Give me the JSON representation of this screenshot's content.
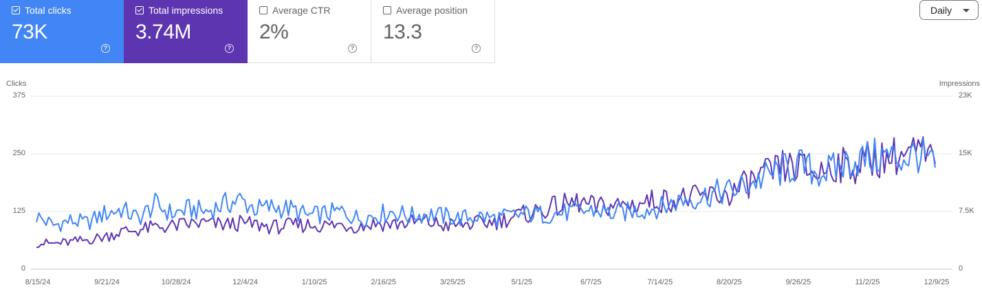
{
  "cards": [
    {
      "label": "Total clicks",
      "value": "73K",
      "checked": true,
      "color": "#4285f4"
    },
    {
      "label": "Total impressions",
      "value": "3.74M",
      "checked": true,
      "color": "#5e35b1"
    },
    {
      "label": "Average CTR",
      "value": "2%",
      "checked": false,
      "color": "#ffffff"
    },
    {
      "label": "Average position",
      "value": "13.3",
      "checked": false,
      "color": "#ffffff"
    }
  ],
  "period_select": {
    "label": "Daily"
  },
  "icons": {
    "help": "help-circle-icon",
    "dropdown": "caret-down-icon",
    "checkbox": "checkbox-icon"
  },
  "chart_data": {
    "type": "line",
    "x": [
      "8/15/24",
      "8/23/24",
      "9/1/24",
      "9/10/24",
      "9/21/24",
      "10/1/24",
      "10/10/24",
      "10/20/24",
      "10/28/24",
      "11/5/24",
      "11/15/24",
      "11/25/24",
      "12/4/24",
      "12/12/24",
      "12/22/24",
      "1/1/25",
      "1/10/25",
      "1/18/25",
      "1/28/25",
      "2/7/25",
      "2/16/25",
      "2/24/25",
      "3/3/25",
      "3/14/25",
      "3/25/25",
      "4/3/25",
      "4/13/25",
      "4/22/25",
      "5/1/25",
      "5/10/25",
      "5/20/25",
      "5/29/25",
      "6/7/25",
      "6/15/25",
      "6/25/25",
      "7/5/25",
      "7/14/25",
      "7/22/25",
      "8/1/25",
      "8/10/25",
      "8/20/25",
      "8/28/25",
      "9/7/25",
      "9/16/25",
      "9/26/25",
      "10/5/25",
      "10/14/25",
      "10/24/25",
      "11/2/25",
      "11/11/25",
      "11/20/25",
      "11/30/25",
      "12/9/25",
      "12/14/25"
    ],
    "series": [
      {
        "name": "Clicks",
        "axis": "left",
        "color": "#4285f4",
        "values": [
          115,
          95,
          105,
          100,
          120,
          130,
          110,
          140,
          120,
          130,
          125,
          140,
          150,
          130,
          135,
          130,
          115,
          120,
          125,
          110,
          118,
          125,
          115,
          120,
          115,
          110,
          115,
          110,
          115,
          120,
          118,
          122,
          125,
          128,
          120,
          125,
          130,
          135,
          150,
          155,
          165,
          170,
          185,
          200,
          215,
          225,
          210,
          215,
          235,
          240,
          245,
          240,
          250,
          220
        ]
      },
      {
        "name": "Impressions",
        "axis": "right",
        "color": "#5e35b1",
        "values": [
          3500,
          3400,
          3600,
          3900,
          4300,
          5000,
          5200,
          5600,
          5700,
          6000,
          6100,
          5900,
          6100,
          5900,
          5600,
          5800,
          5900,
          5800,
          5900,
          5700,
          6100,
          6000,
          6200,
          6300,
          5800,
          5900,
          6100,
          6300,
          6900,
          7400,
          8000,
          8500,
          8900,
          8200,
          8500,
          8500,
          9000,
          9200,
          9400,
          9500,
          9800,
          10000,
          11500,
          12500,
          13500,
          13500,
          12700,
          14000,
          13500,
          14500,
          14800,
          15200,
          15500,
          14000
        ]
      }
    ],
    "y_left": {
      "label": "Clicks",
      "ticks": [
        "375",
        "250",
        "125",
        "0"
      ],
      "range": [
        0,
        375
      ]
    },
    "y_right": {
      "label": "Impressions",
      "ticks": [
        "23K",
        "15K",
        "7.5K",
        "0"
      ],
      "range": [
        0,
        23000
      ]
    },
    "x_ticks": [
      "8/15/24",
      "9/21/24",
      "10/28/24",
      "12/4/24",
      "1/10/25",
      "2/16/25",
      "3/25/25",
      "5/1/25",
      "6/7/25",
      "7/14/25",
      "8/20/25",
      "9/26/25",
      "11/2/25",
      "12/9/25"
    ],
    "grid": true
  }
}
